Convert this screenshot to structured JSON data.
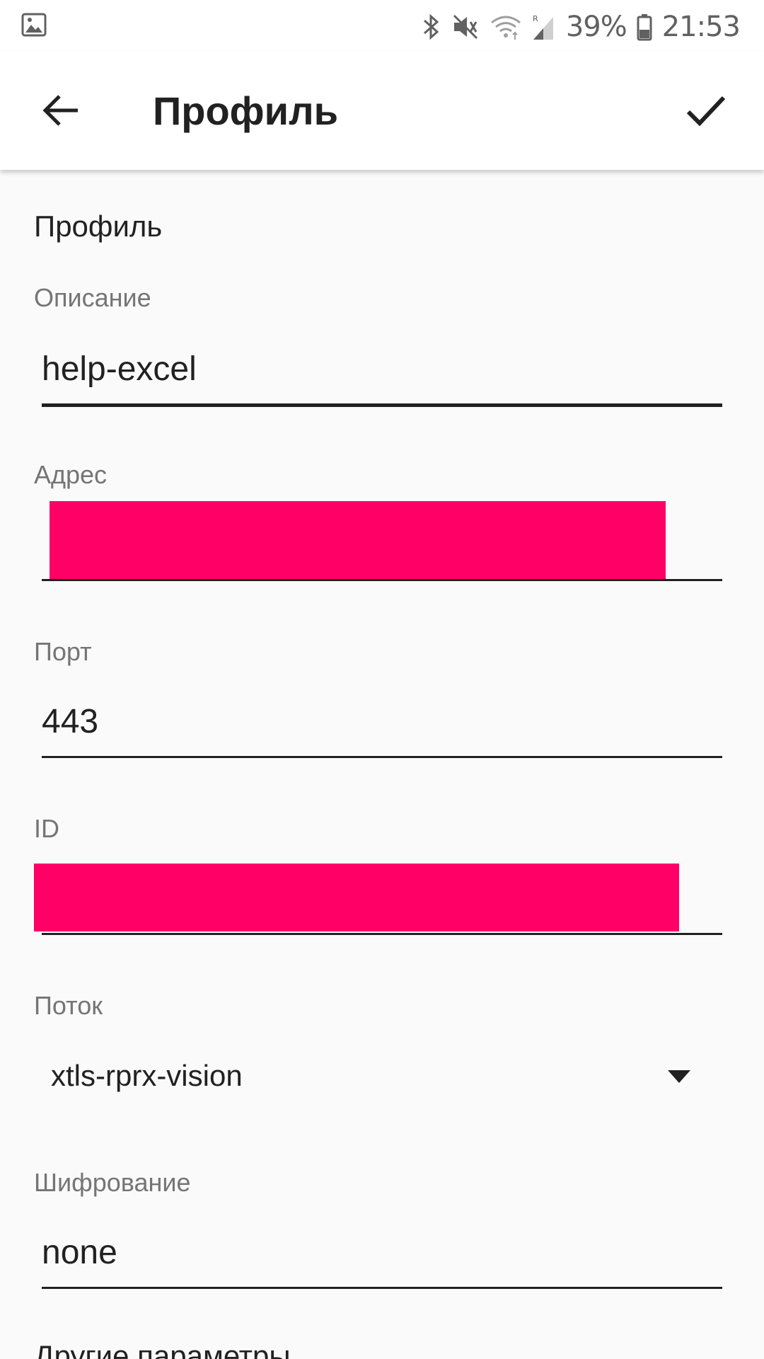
{
  "status_bar": {
    "left_icon": "image-notification-icon",
    "icons": [
      "bluetooth-icon",
      "vibrate-icon",
      "wifi-icon",
      "signal-icon",
      "battery-icon"
    ],
    "battery": "39%",
    "time": "21:53"
  },
  "app_bar": {
    "title": "Профиль",
    "back_icon": "arrow-back-icon",
    "save_icon": "check-icon"
  },
  "form": {
    "section_title": "Профиль",
    "description": {
      "label": "Описание",
      "value": "help-excel"
    },
    "address": {
      "label": "Адрес",
      "value": ""
    },
    "port": {
      "label": "Порт",
      "value": "443"
    },
    "id": {
      "label": "ID",
      "value": ""
    },
    "flow": {
      "label": "Поток",
      "value": "xtls-rprx-vision"
    },
    "encryption": {
      "label": "Шифрование",
      "value": "none"
    },
    "more_section": "Другие параметры"
  },
  "colors": {
    "redaction": "#ff0066",
    "background": "#fafafa",
    "label": "#757575"
  }
}
